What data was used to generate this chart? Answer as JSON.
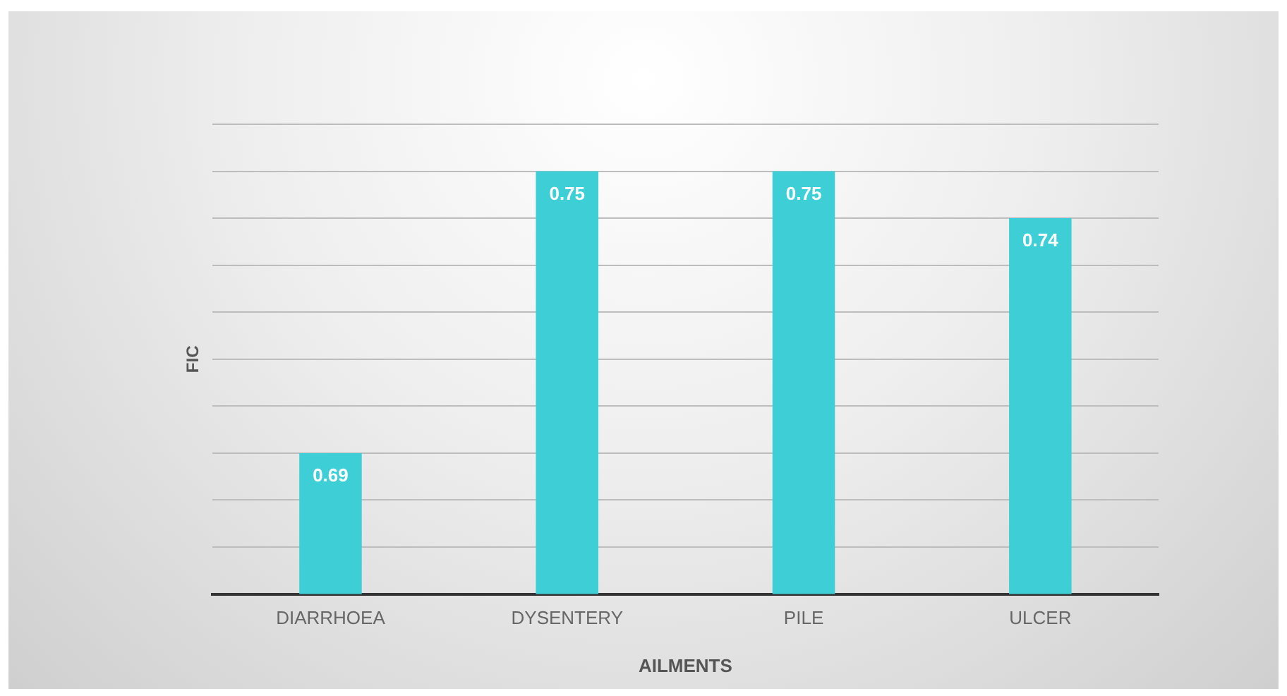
{
  "chart_data": {
    "type": "bar",
    "xlabel": "AILMENTS",
    "ylabel": "FIC",
    "categories": [
      "DIARRHOEA",
      "DYSENTERY",
      "PILE",
      "ULCER"
    ],
    "values": [
      0.69,
      0.75,
      0.75,
      0.74
    ],
    "color": "#3ecfd6",
    "ylim": [
      0.66,
      0.76
    ],
    "yticks": [
      {
        "value": 0.66,
        "label": null
      },
      {
        "value": 0.67,
        "label": null
      },
      {
        "value": 0.68,
        "label": null
      },
      {
        "value": 0.69,
        "label": null
      },
      {
        "value": 0.7,
        "label": null
      },
      {
        "value": 0.71,
        "label": null
      },
      {
        "value": 0.72,
        "label": null
      },
      {
        "value": 0.73,
        "label": null
      },
      {
        "value": 0.74,
        "label": null
      },
      {
        "value": 0.75,
        "label": null
      },
      {
        "value": 0.76,
        "label": null
      }
    ],
    "tick_labels": "x",
    "grid": "y",
    "data_labels": true,
    "legend": false
  }
}
